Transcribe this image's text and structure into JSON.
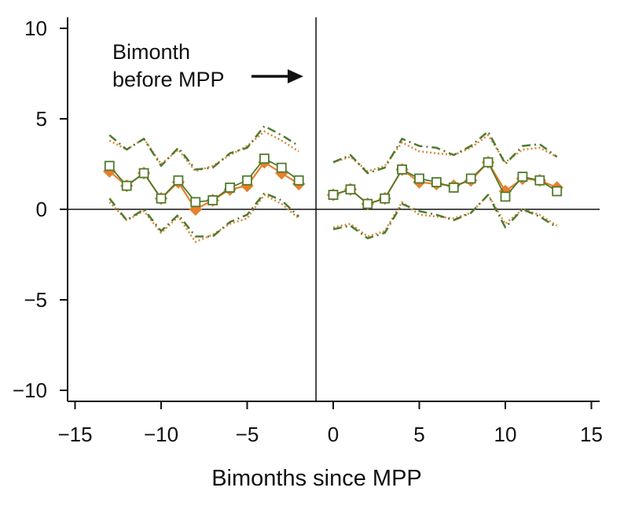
{
  "chart_data": {
    "type": "line",
    "xlabel": "Bimonths since MPP",
    "ylabel": "",
    "xlim": [
      -16,
      16
    ],
    "ylim": [
      -10.5,
      10.5
    ],
    "x_ticks": [
      -15,
      -10,
      -5,
      0,
      5,
      10,
      15
    ],
    "x_tick_labels": [
      "−15",
      "−10",
      "−5",
      "0",
      "5",
      "10",
      "15"
    ],
    "y_ticks": [
      -10,
      -5,
      0,
      5,
      10
    ],
    "y_tick_labels": [
      "−10",
      "−5",
      "0",
      "5",
      "10"
    ],
    "grid": false,
    "reference_lines": {
      "horizontal_y": 0,
      "vertical_x": -1
    },
    "annotation": {
      "lines": [
        "Bimonth",
        "before MPP"
      ],
      "arrow": "right"
    },
    "series": [
      {
        "style": "orange-diamond-solid",
        "color": "#E87F2A",
        "segments": [
          {
            "x": [
              -13,
              -12,
              -11,
              -10,
              -9,
              -8,
              -7,
              -6,
              -5,
              -4,
              -3,
              -2
            ],
            "y": [
              2.1,
              1.3,
              2.0,
              0.6,
              1.5,
              0.0,
              0.5,
              1.1,
              1.3,
              2.6,
              2.0,
              1.4
            ]
          },
          {
            "x": [
              0,
              1,
              2,
              3,
              4,
              5,
              6,
              7,
              8,
              9,
              10,
              11,
              12,
              13
            ],
            "y": [
              0.8,
              1.1,
              0.3,
              0.6,
              2.2,
              1.5,
              1.4,
              1.3,
              1.6,
              2.6,
              1.0,
              1.7,
              1.6,
              1.2
            ]
          }
        ]
      },
      {
        "style": "green-square-open-solid",
        "color": "#4E7B2E",
        "segments": [
          {
            "x": [
              -13,
              -12,
              -11,
              -10,
              -9,
              -8,
              -7,
              -6,
              -5,
              -4,
              -3,
              -2
            ],
            "y": [
              2.4,
              1.3,
              2.0,
              0.6,
              1.6,
              0.4,
              0.5,
              1.2,
              1.6,
              2.8,
              2.3,
              1.6
            ]
          },
          {
            "x": [
              0,
              1,
              2,
              3,
              4,
              5,
              6,
              7,
              8,
              9,
              10,
              11,
              12,
              13
            ],
            "y": [
              0.8,
              1.1,
              0.3,
              0.6,
              2.2,
              1.7,
              1.5,
              1.2,
              1.7,
              2.6,
              0.7,
              1.8,
              1.6,
              1.0
            ]
          }
        ]
      },
      {
        "style": "orange-dotted-upper",
        "color": "#D9883F",
        "segments": [
          {
            "x": [
              -13,
              -12,
              -11,
              -10,
              -9,
              -8,
              -7,
              -6,
              -5,
              -4,
              -3,
              -2
            ],
            "y": [
              3.8,
              3.3,
              3.9,
              2.5,
              3.3,
              2.1,
              2.4,
              3.0,
              3.5,
              4.3,
              3.8,
              3.2
            ]
          },
          {
            "x": [
              0,
              1,
              2,
              3,
              4,
              5,
              6,
              7,
              8,
              9,
              10,
              11,
              12,
              13
            ],
            "y": [
              2.6,
              2.9,
              2.1,
              2.4,
              3.7,
              3.2,
              3.1,
              3.0,
              3.4,
              4.1,
              2.6,
              3.3,
              3.4,
              2.9
            ]
          }
        ]
      },
      {
        "style": "green-dashdot-upper",
        "color": "#4E7B2E",
        "segments": [
          {
            "x": [
              -13,
              -12,
              -11,
              -10,
              -9,
              -8,
              -7,
              -6,
              -5,
              -4,
              -3,
              -2
            ],
            "y": [
              4.1,
              3.3,
              3.9,
              2.4,
              3.4,
              2.2,
              2.3,
              3.1,
              3.4,
              4.6,
              4.1,
              3.5
            ]
          },
          {
            "x": [
              0,
              1,
              2,
              3,
              4,
              5,
              6,
              7,
              8,
              9,
              10,
              11,
              12,
              13
            ],
            "y": [
              2.6,
              3.0,
              2.0,
              2.3,
              3.9,
              3.5,
              3.4,
              3.0,
              3.5,
              4.3,
              2.5,
              3.5,
              3.6,
              2.9
            ]
          }
        ]
      },
      {
        "style": "orange-dotted-lower",
        "color": "#D9883F",
        "segments": [
          {
            "x": [
              -13,
              -12,
              -11,
              -10,
              -9,
              -8,
              -7,
              -6,
              -5,
              -4,
              -3,
              -2
            ],
            "y": [
              0.4,
              -0.6,
              -0.1,
              -1.3,
              -0.4,
              -1.8,
              -1.4,
              -0.8,
              -0.5,
              0.8,
              0.3,
              -0.5
            ]
          },
          {
            "x": [
              0,
              1,
              2,
              3,
              4,
              5,
              6,
              7,
              8,
              9,
              10,
              11,
              12,
              13
            ],
            "y": [
              -1.0,
              -0.8,
              -1.5,
              -1.2,
              0.4,
              -0.3,
              -0.4,
              -0.5,
              -0.2,
              0.8,
              -0.8,
              0.0,
              -0.3,
              -0.9
            ]
          }
        ]
      },
      {
        "style": "green-dashdot-lower",
        "color": "#4E7B2E",
        "segments": [
          {
            "x": [
              -13,
              -12,
              -11,
              -10,
              -9,
              -8,
              -7,
              -6,
              -5,
              -4,
              -3,
              -2
            ],
            "y": [
              0.6,
              -0.6,
              0.0,
              -1.2,
              -0.3,
              -1.5,
              -1.5,
              -0.7,
              -0.3,
              0.9,
              0.5,
              -0.4
            ]
          },
          {
            "x": [
              0,
              1,
              2,
              3,
              4,
              5,
              6,
              7,
              8,
              9,
              10,
              11,
              12,
              13
            ],
            "y": [
              -1.1,
              -0.9,
              -1.6,
              -1.3,
              0.3,
              -0.1,
              -0.3,
              -0.6,
              -0.2,
              0.8,
              -1.0,
              0.0,
              -0.4,
              -1.0
            ]
          }
        ]
      }
    ]
  }
}
